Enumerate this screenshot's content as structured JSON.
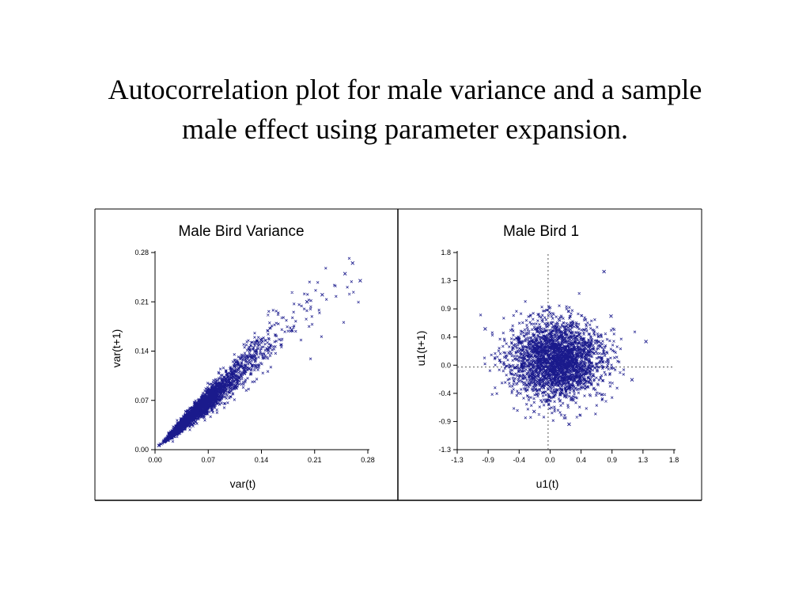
{
  "slide": {
    "title_line1": "Autocorrelation plot for male variance and a sample",
    "title_line2": "male effect using parameter expansion."
  },
  "colors": {
    "points": "#1a1a8c",
    "axis": "#000000",
    "reference": "#555555"
  },
  "chart_data": [
    {
      "type": "scatter",
      "title": "Male Bird Variance",
      "xlabel": "var(t)",
      "ylabel": "var(t+1)",
      "xlim": [
        0,
        0.28
      ],
      "ylim": [
        0,
        0.28
      ],
      "xticks": [
        "0.00",
        "0.07",
        "0.14",
        "0.21",
        "0.28"
      ],
      "yticks": [
        "0.00",
        "0.07",
        "0.14",
        "0.21",
        "0.28"
      ],
      "marker": "x",
      "pattern": "positively correlated cloud along the diagonal, densest near 0.03–0.10, sparse outliers up to ~0.27",
      "sample_points": [
        [
          0.005,
          0.006
        ],
        [
          0.02,
          0.019
        ],
        [
          0.04,
          0.045
        ],
        [
          0.06,
          0.055
        ],
        [
          0.08,
          0.085
        ],
        [
          0.1,
          0.095
        ],
        [
          0.12,
          0.13
        ],
        [
          0.15,
          0.145
        ],
        [
          0.18,
          0.17
        ],
        [
          0.2,
          0.21
        ],
        [
          0.22,
          0.22
        ],
        [
          0.25,
          0.25
        ],
        [
          0.26,
          0.265
        ],
        [
          0.27,
          0.24
        ]
      ]
    },
    {
      "type": "scatter",
      "title": "Male Bird 1",
      "xlabel": "u1(t)",
      "ylabel": "u1(t+1)",
      "xlim": [
        -1.3,
        1.8
      ],
      "ylim": [
        -1.3,
        1.8
      ],
      "xticks": [
        "-1.3",
        "-0.9",
        "-0.4",
        "0.0",
        "0.4",
        "0.9",
        "1.3",
        "1.8"
      ],
      "yticks": [
        "-1.3",
        "-0.9",
        "-0.4",
        "0.0",
        "0.4",
        "0.9",
        "1.3",
        "1.8"
      ],
      "reference_lines": {
        "x": 0.0,
        "y": 0.0,
        "style": "dotted"
      },
      "marker": "x",
      "pattern": "roughly circular cloud centered near (0.1, 0.1), radius ~0.6, outliers to ~1.5",
      "sample_points": [
        [
          0.1,
          0.1
        ],
        [
          -0.5,
          0.3
        ],
        [
          0.6,
          -0.2
        ],
        [
          0.9,
          0.8
        ],
        [
          -0.9,
          0.6
        ],
        [
          1.4,
          0.4
        ],
        [
          0.8,
          1.5
        ],
        [
          0.3,
          -0.9
        ],
        [
          -0.2,
          -0.7
        ],
        [
          1.2,
          -0.2
        ]
      ]
    }
  ]
}
